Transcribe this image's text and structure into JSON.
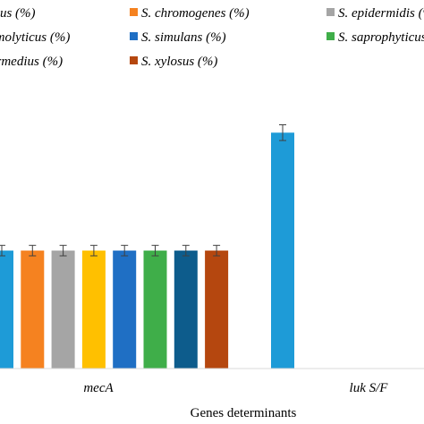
{
  "chart_data": {
    "type": "bar",
    "categories": [
      "mecA",
      "luk S/F"
    ],
    "xlabel": "Genes determinants",
    "ylabel": "",
    "ylim": [
      0,
      100
    ],
    "grid": false,
    "legend_position": "top",
    "series": [
      {
        "name": "S. aureus (%)",
        "color": "#1e9bd7",
        "values": [
          45,
          90
        ],
        "error": [
          2,
          3
        ]
      },
      {
        "name": "S. chromogenes (%)",
        "color": "#f58220",
        "values": [
          45,
          0
        ],
        "error": [
          2,
          0
        ]
      },
      {
        "name": "S. epidermidis (%)",
        "color": "#a5a5a5",
        "values": [
          45,
          0
        ],
        "error": [
          2,
          0
        ]
      },
      {
        "name": "S. haemolyticus (%)",
        "color": "#ffc000",
        "values": [
          45,
          0
        ],
        "error": [
          2,
          0
        ]
      },
      {
        "name": "S. simulans (%)",
        "color": "#1f6fc4",
        "values": [
          45,
          0
        ],
        "error": [
          2,
          0
        ]
      },
      {
        "name": "S. saprophyticus (%)",
        "color": "#3fae49",
        "values": [
          45,
          0
        ],
        "error": [
          2,
          0
        ]
      },
      {
        "name": "S. intermedius (%)",
        "color": "#0d5c8c",
        "values": [
          45,
          0
        ],
        "error": [
          2,
          0
        ]
      },
      {
        "name": "S. xylosus (%)",
        "color": "#b5470f",
        "values": [
          45,
          0
        ],
        "error": [
          2,
          0
        ]
      }
    ]
  }
}
